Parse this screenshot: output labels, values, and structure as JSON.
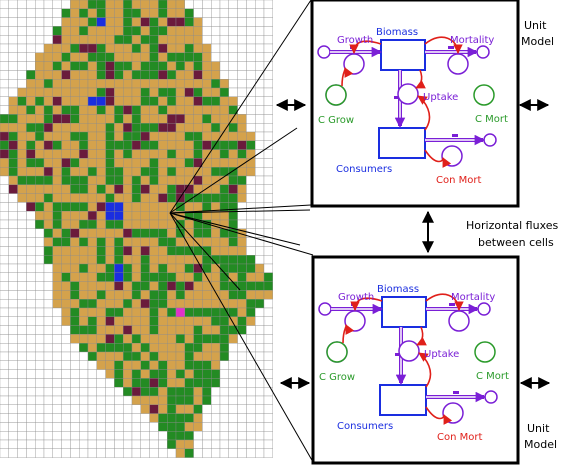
{
  "colors": {
    "land": "#d4a24c",
    "vegetation": "#238b23",
    "wetland": "#6a1b3c",
    "water": "#1a2ee0",
    "special": "#e033c8",
    "grid": "#8a8a8a",
    "flow_purple": "#7a1fd6",
    "stock_blue": "#1a2ee0",
    "link_red": "#e0201a",
    "label_green": "#2a9a2a"
  },
  "grid_map": {
    "legend": {}
  },
  "model_top": {
    "biomass": "Biomass",
    "growth": "Growth",
    "mortality": "Mortality",
    "uptake": "Uptake",
    "c_grow": "C Grow",
    "c_mort": "C Mort",
    "consumers": "Consumers",
    "con_mort": "Con Mort"
  },
  "model_bottom": {
    "biomass": "Biomass",
    "growth": "Growth",
    "mortality": "Mortality",
    "uptake": "Uptake",
    "c_grow": "C Grow",
    "c_mort": "C Mort",
    "consumers": "Consumers",
    "con_mort": "Con Mort"
  },
  "labels": {
    "unit_model_top_line1": "Unit",
    "unit_model_top_line2": "Model",
    "unit_model_bottom_line1": "Unit",
    "unit_model_bottom_line2": "Model",
    "horizontal_line1": "Horizontal fluxes",
    "horizontal_line2": "between cells"
  }
}
